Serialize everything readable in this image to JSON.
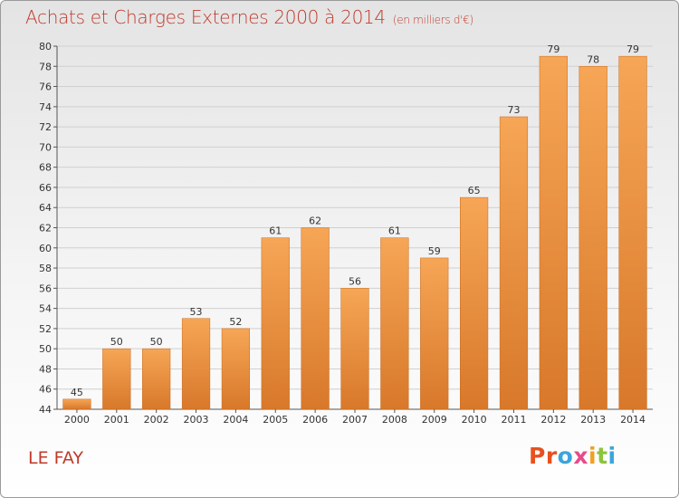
{
  "header": {
    "title": "Achats et Charges Externes 2000 à 2014",
    "subtitle": "(en milliers d'€)"
  },
  "footer": {
    "commune": "LE FAY",
    "logo_letters": [
      "P",
      "r",
      "o",
      "x",
      "i",
      "t",
      "i"
    ],
    "logo_colors": [
      "#e8501e",
      "#e8501e",
      "#3aa5dc",
      "#e84a8a",
      "#f0a020",
      "#8cc43c",
      "#3aa5dc"
    ]
  },
  "chart_data": {
    "type": "bar",
    "title": "Achats et Charges Externes 2000 à 2014",
    "subtitle": "(en milliers d'€)",
    "categories": [
      "2000",
      "2001",
      "2002",
      "2003",
      "2004",
      "2005",
      "2006",
      "2007",
      "2008",
      "2009",
      "2010",
      "2011",
      "2012",
      "2013",
      "2014"
    ],
    "values": [
      45,
      50,
      50,
      53,
      52,
      61,
      62,
      56,
      61,
      59,
      65,
      73,
      79,
      78,
      79
    ],
    "ylim": [
      44,
      80
    ],
    "yticks": [
      44,
      46,
      48,
      50,
      52,
      54,
      56,
      58,
      60,
      62,
      64,
      66,
      68,
      70,
      72,
      74,
      76,
      78,
      80
    ],
    "grid": true,
    "data_labels": true,
    "bar_color": "#f0a050",
    "bar_color_dark": "#d87828"
  }
}
